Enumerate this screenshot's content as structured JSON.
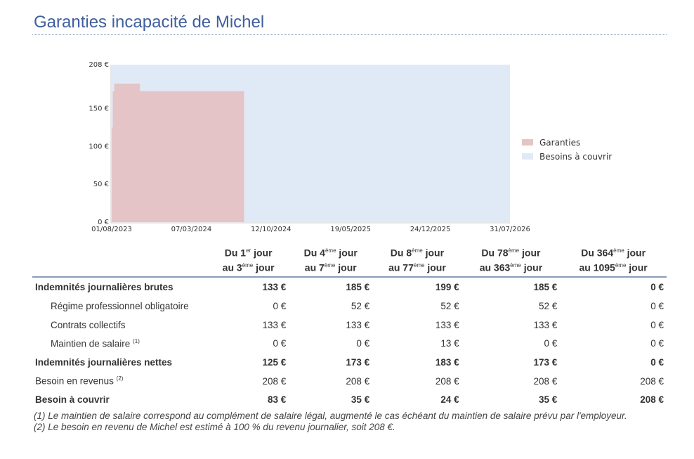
{
  "title": "Garanties incapacité de Michel",
  "chart_data": {
    "type": "area",
    "y_ticks": [
      "0 €",
      "50 €",
      "100 €",
      "150 €",
      "208 €"
    ],
    "y_tick_values": [
      0,
      50,
      100,
      150,
      208
    ],
    "ylim": [
      0,
      208
    ],
    "x_ticks": [
      "01/08/2023",
      "07/03/2024",
      "12/10/2024",
      "19/05/2025",
      "24/12/2025",
      "31/07/2026"
    ],
    "x_tick_days": [
      0,
      219,
      438,
      657,
      876,
      1095
    ],
    "xlim_days": [
      0,
      1095
    ],
    "legend": [
      "Garanties",
      "Besoins à couvrir"
    ],
    "legend_position": "right",
    "colors": {
      "garanties": "#e4c4c6",
      "besoins": "#e0eaf6"
    },
    "series": [
      {
        "name": "Garanties",
        "steps": [
          {
            "from_day": 0,
            "to_day": 3,
            "value": 125
          },
          {
            "from_day": 3,
            "to_day": 7,
            "value": 173
          },
          {
            "from_day": 7,
            "to_day": 77,
            "value": 183
          },
          {
            "from_day": 77,
            "to_day": 363,
            "value": 173
          },
          {
            "from_day": 363,
            "to_day": 1095,
            "value": 0
          }
        ]
      },
      {
        "name": "Besoins à couvrir",
        "steps": [
          {
            "from_day": 0,
            "to_day": 1095,
            "value": 208
          }
        ]
      }
    ]
  },
  "table": {
    "headers": [
      {
        "a": "Du 1",
        "as": "er",
        "b": " jour",
        "c": "au 3",
        "cs": "ème",
        "d": " jour"
      },
      {
        "a": "Du 4",
        "as": "ème",
        "b": " jour",
        "c": "au 7",
        "cs": "ème",
        "d": " jour"
      },
      {
        "a": "Du 8",
        "as": "ème",
        "b": " jour",
        "c": "au 77",
        "cs": "ème",
        "d": " jour"
      },
      {
        "a": "Du 78",
        "as": "ème",
        "b": " jour",
        "c": "au 363",
        "cs": "ème",
        "d": " jour"
      },
      {
        "a": "Du 364",
        "as": "ème",
        "b": " jour",
        "c": "au 1095",
        "cs": "ème",
        "d": " jour"
      }
    ],
    "rows": [
      {
        "label": "Indemnités journalières brutes",
        "note": "",
        "style": "b",
        "values": [
          "133 €",
          "185 €",
          "199 €",
          "185 €",
          "0 €"
        ]
      },
      {
        "label": "Régime professionnel obligatoire",
        "note": "",
        "style": "ind",
        "values": [
          "0 €",
          "52 €",
          "52 €",
          "52 €",
          "0 €"
        ]
      },
      {
        "label": "Contrats collectifs",
        "note": "",
        "style": "ind",
        "values": [
          "133 €",
          "133 €",
          "133 €",
          "133 €",
          "0 €"
        ]
      },
      {
        "label": "Maintien de salaire",
        "note": "(1)",
        "style": "ind",
        "values": [
          "0 €",
          "0 €",
          "13 €",
          "0 €",
          "0 €"
        ]
      },
      {
        "label": "Indemnités journalières nettes",
        "note": "",
        "style": "b",
        "values": [
          "125 €",
          "173 €",
          "183 €",
          "173 €",
          "0 €"
        ]
      },
      {
        "label": "Besoin en revenus",
        "note": "(2)",
        "style": "",
        "values": [
          "208 €",
          "208 €",
          "208 €",
          "208 €",
          "208 €"
        ]
      },
      {
        "label": "Besoin à couvrir",
        "note": "",
        "style": "b",
        "values": [
          "83 €",
          "35 €",
          "24 €",
          "35 €",
          "208 €"
        ]
      }
    ]
  },
  "notes": [
    "(1) Le maintien de salaire correspond au complément de salaire légal, augmenté le cas échéant du maintien de salaire prévu par l'employeur.",
    "(2) Le besoin en revenu de Michel est estimé à 100 % du revenu journalier, soit 208 €."
  ]
}
